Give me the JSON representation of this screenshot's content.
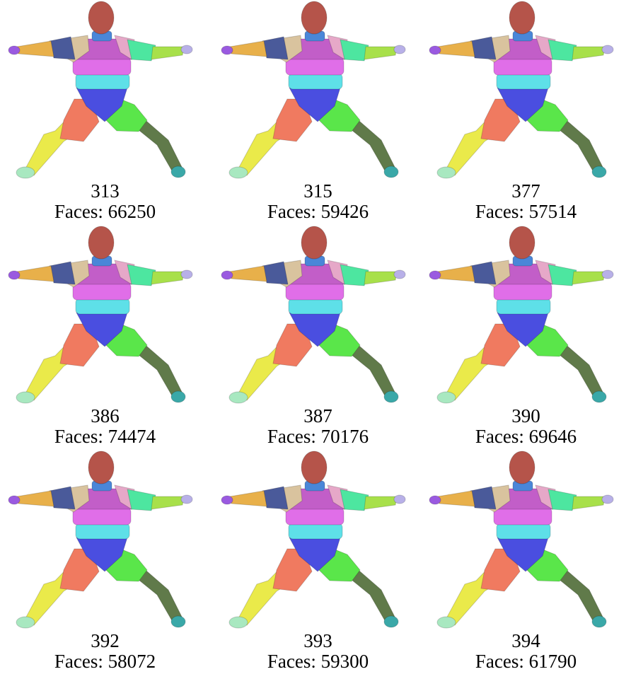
{
  "faces_label": "Faces:",
  "models": [
    {
      "id": "313",
      "faces": "66250"
    },
    {
      "id": "315",
      "faces": "59426"
    },
    {
      "id": "377",
      "faces": "57514"
    },
    {
      "id": "386",
      "faces": "74474"
    },
    {
      "id": "387",
      "faces": "70176"
    },
    {
      "id": "390",
      "faces": "69646"
    },
    {
      "id": "392",
      "faces": "58072"
    },
    {
      "id": "393",
      "faces": "59300"
    },
    {
      "id": "394",
      "faces": "61790"
    }
  ],
  "segment_colors": {
    "head": "#b5544a",
    "neck": "#4a86d8",
    "shoulder_left": "#d9c39e",
    "shoulder_right": "#e6a8c8",
    "upper_arm_left": "#4a5a9a",
    "upper_arm_right": "#4de6a0",
    "forearm_left": "#e8b04a",
    "forearm_right": "#a8e04a",
    "hand_left": "#9a5ae0",
    "hand_right": "#b8b0e8",
    "chest_upper": "#c25ec8",
    "chest_band": "#e06ee8",
    "waist_band": "#5ee0e8",
    "abdomen": "#4a4ee0",
    "thigh_left": "#f07a60",
    "thigh_right": "#5ae64a",
    "shin_left": "#eaea4a",
    "shin_right": "#607a4a",
    "foot_left": "#a8e8c0",
    "foot_right": "#3aa8a8"
  }
}
